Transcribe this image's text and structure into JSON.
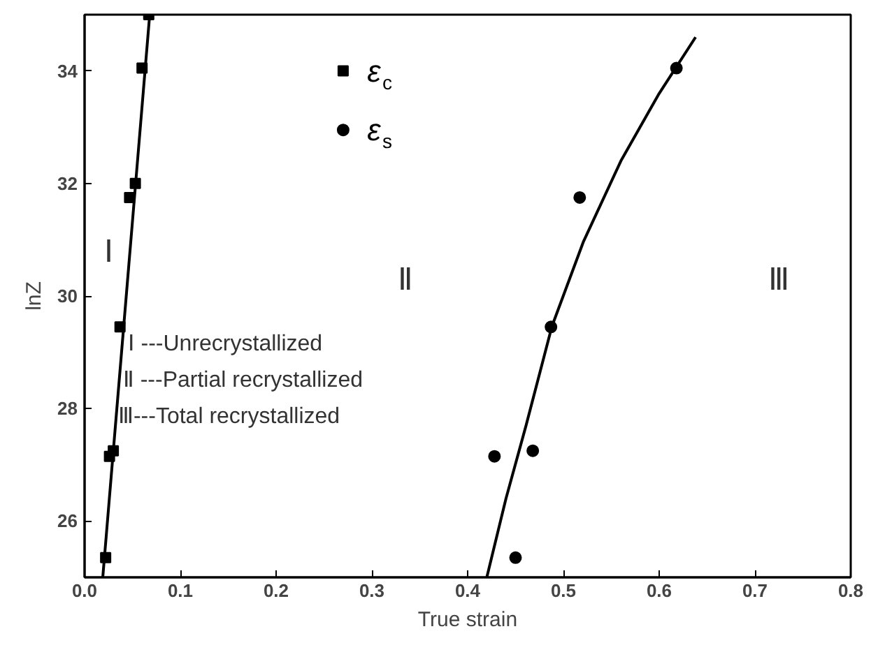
{
  "chart_data": {
    "type": "scatter",
    "xlabel": "True strain",
    "ylabel": "lnZ",
    "xlim": [
      0,
      0.8
    ],
    "ylim": [
      25,
      35
    ],
    "xticks": [
      {
        "value": 0,
        "label": "0.0"
      },
      0.1,
      0.2,
      0.3,
      0.4,
      0.5,
      0.6,
      0.7,
      0.8
    ],
    "yticks": [
      26,
      28,
      30,
      32,
      34
    ],
    "grid": false,
    "legend": "top",
    "series": [
      {
        "name": "ε$_{c}$",
        "marker": "square",
        "color": "#000000",
        "x": [
          0.022,
          0.026,
          0.03,
          0.037,
          0.047,
          0.053,
          0.06,
          0.067
        ],
        "values": [
          25.35,
          27.15,
          27.25,
          29.45,
          31.75,
          32.0,
          34.05,
          35.0
        ]
      },
      {
        "name": "ε$_{s}$",
        "marker": "circle",
        "color": "#000000",
        "x": [
          0.45,
          0.428,
          0.468,
          0.487,
          0.517,
          0.618
        ],
        "values": [
          25.35,
          27.15,
          27.25,
          29.45,
          31.75,
          34.05
        ]
      },
      {
        "type": "line",
        "color": "#000000",
        "x": [
          0.019,
          0.068
        ],
        "values": [
          25.0,
          35.0
        ]
      },
      {
        "type": "line",
        "color": "#000000",
        "x": [
          0.42,
          0.44,
          0.461,
          0.488,
          0.521,
          0.56,
          0.6,
          0.638
        ],
        "values": [
          25.0,
          26.4,
          27.7,
          29.46,
          30.97,
          32.4,
          33.6,
          34.6
        ]
      }
    ],
    "annotations": [
      "Ⅰ",
      "Ⅱ",
      "Ⅲ",
      "Ⅰ ---Unrecrystallized",
      "Ⅱ ---Partial recrystallized",
      "Ⅲ---Total recrystallized"
    ]
  }
}
